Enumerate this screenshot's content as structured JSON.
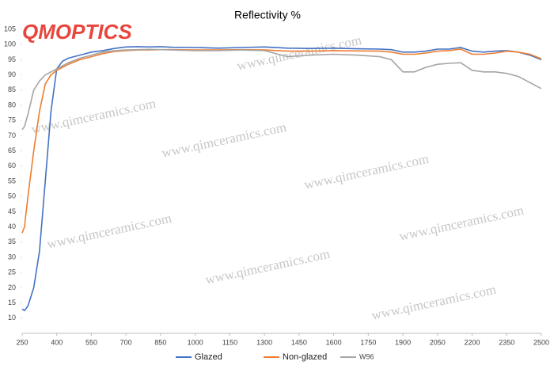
{
  "chart_data": {
    "type": "line",
    "title": "Reflectivity %",
    "logo": "QMOPTICS",
    "watermark": "www.qimceramics.com",
    "x": [
      250,
      260,
      275,
      300,
      325,
      350,
      375,
      400,
      425,
      450,
      500,
      550,
      600,
      650,
      700,
      750,
      800,
      850,
      900,
      1000,
      1100,
      1200,
      1300,
      1400,
      1500,
      1600,
      1700,
      1800,
      1850,
      1900,
      1950,
      2000,
      2050,
      2100,
      2150,
      2200,
      2250,
      2300,
      2350,
      2400,
      2450,
      2500
    ],
    "series": [
      {
        "name": "Glazed",
        "color": "#4472c4",
        "values": [
          13,
          12.5,
          14,
          20,
          32,
          55,
          78,
          92,
          94.5,
          95.5,
          96.5,
          97.5,
          98,
          98.7,
          99.2,
          99.3,
          99.2,
          99.3,
          99.1,
          99,
          98.8,
          99,
          99.2,
          98.8,
          98.7,
          98.8,
          98.6,
          98.5,
          98.3,
          97.5,
          97.5,
          97.8,
          98.5,
          98.5,
          99,
          97.8,
          97.5,
          97.8,
          98,
          97.5,
          96.5,
          95
        ]
      },
      {
        "name": "Non-glazed",
        "color": "#ed7d31",
        "values": [
          38,
          40,
          50,
          65,
          78,
          87,
          90,
          91.5,
          92.5,
          93.5,
          95,
          96,
          97,
          97.7,
          98,
          98.2,
          98.2,
          98.3,
          98.3,
          98.2,
          98.2,
          98.3,
          98.2,
          97.8,
          97.8,
          98,
          97.9,
          97.8,
          97.5,
          96.8,
          96.8,
          97.2,
          97.8,
          98,
          98.5,
          96.8,
          96.8,
          97.2,
          97.8,
          97.5,
          96.8,
          95.3
        ]
      },
      {
        "name": "W96",
        "color": "#a5a5a5",
        "values": [
          72,
          73,
          77,
          85,
          88,
          90,
          91,
          92,
          93,
          94,
          95.5,
          96.5,
          97.5,
          98,
          98.2,
          98.3,
          98.4,
          98.3,
          98.2,
          98,
          98,
          98.2,
          98,
          96,
          96.5,
          96.8,
          96.5,
          96,
          95,
          91,
          91,
          92.5,
          93.5,
          93.8,
          94,
          91.5,
          91,
          91,
          90.5,
          89.5,
          87.5,
          85.5
        ]
      }
    ],
    "xlim": [
      250,
      2500
    ],
    "xticks": [
      250,
      400,
      550,
      700,
      850,
      1000,
      1150,
      1300,
      1450,
      1600,
      1750,
      1900,
      2050,
      2200,
      2350,
      2500
    ],
    "ylim": [
      5,
      105
    ],
    "yticks": [
      10,
      15,
      20,
      25,
      30,
      35,
      40,
      45,
      50,
      55,
      60,
      65,
      70,
      75,
      80,
      85,
      90,
      95,
      100,
      105
    ],
    "grid": false,
    "legend": "bottom"
  }
}
